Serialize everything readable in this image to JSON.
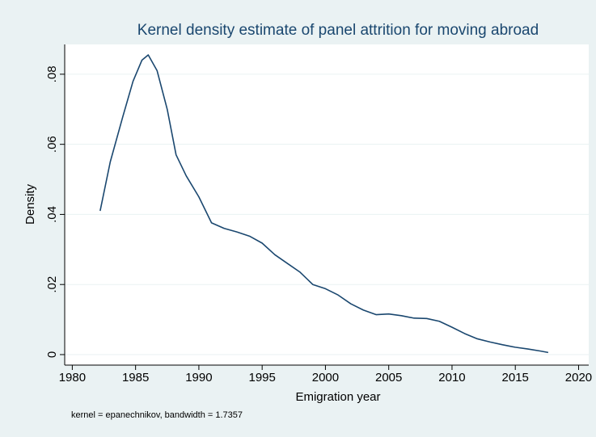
{
  "chart_data": {
    "type": "line",
    "title": "Kernel density estimate of panel attrition for moving abroad",
    "x_label": "Emigration year",
    "y_label": "Density",
    "note": "kernel = epanechnikov, bandwidth = 1.7357",
    "color": "#1a476f",
    "grid": true,
    "xlim": [
      1979.4,
      2020.8
    ],
    "ylim": [
      -0.003,
      0.0885
    ],
    "xticks": [
      1980,
      1985,
      1990,
      1995,
      2000,
      2005,
      2010,
      2015,
      2020
    ],
    "yticks": [
      0,
      {
        "value": 0.02,
        "label": ".02"
      },
      {
        "value": 0.04,
        "label": ".04"
      },
      {
        "value": 0.06,
        "label": ".06"
      },
      {
        "value": 0.08,
        "label": ".08"
      }
    ],
    "x": [
      1982.2,
      1983,
      1984,
      1984.8,
      1985.5,
      1986,
      1986.7,
      1987.5,
      1988.2,
      1989,
      1990,
      1991,
      1992,
      1993,
      1994,
      1995,
      1996,
      1997,
      1998,
      1999,
      2000,
      2001,
      2002,
      2003,
      2004,
      2005,
      2006,
      2007,
      2008,
      2009,
      2010,
      2011,
      2012,
      2013,
      2014,
      2015,
      2016,
      2017,
      2017.6
    ],
    "values": [
      0.041,
      0.055,
      0.068,
      0.078,
      0.084,
      0.0855,
      0.081,
      0.07,
      0.057,
      0.051,
      0.045,
      0.0376,
      0.036,
      0.035,
      0.0338,
      0.0318,
      0.0285,
      0.026,
      0.0235,
      0.02,
      0.0188,
      0.017,
      0.0145,
      0.0127,
      0.0114,
      0.0116,
      0.0111,
      0.0104,
      0.0103,
      0.0095,
      0.0078,
      0.006,
      0.0045,
      0.0036,
      0.0028,
      0.0021,
      0.0016,
      0.001,
      0.0006
    ]
  }
}
